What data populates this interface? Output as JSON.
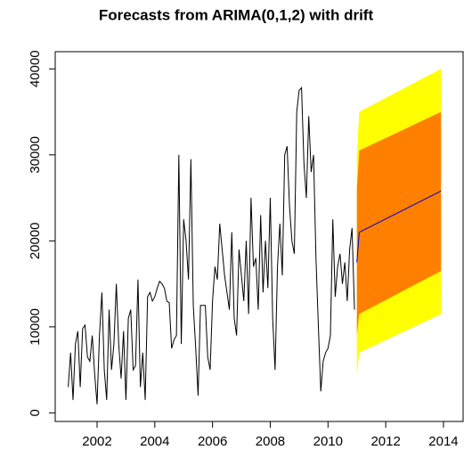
{
  "chart_data": {
    "type": "forecast",
    "title": "Forecasts from ARIMA(0,1,2) with drift",
    "xlim": [
      2000.55,
      2014.68
    ],
    "ylim": [
      -1000,
      42000
    ],
    "xticks": [
      2002,
      2004,
      2006,
      2008,
      2010,
      2012,
      2014
    ],
    "yticks": [
      0,
      10000,
      20000,
      30000,
      40000
    ],
    "series": [
      {
        "color": "#000000",
        "x": [
          2001,
          2001.083,
          2001.167,
          2001.25,
          2001.333,
          2001.417,
          2001.5,
          2001.583,
          2001.667,
          2001.75,
          2001.833,
          2001.917,
          2002,
          2002.083,
          2002.167,
          2002.25,
          2002.333,
          2002.417,
          2002.5,
          2002.583,
          2002.667,
          2002.75,
          2002.833,
          2002.917,
          2003,
          2003.083,
          2003.167,
          2003.25,
          2003.333,
          2003.417,
          2003.5,
          2003.583,
          2003.667,
          2003.75,
          2003.833,
          2003.917,
          2004,
          2004.083,
          2004.167,
          2004.25,
          2004.333,
          2004.417,
          2004.5,
          2004.583,
          2004.667,
          2004.75,
          2004.833,
          2004.917,
          2005,
          2005.083,
          2005.167,
          2005.25,
          2005.333,
          2005.417,
          2005.5,
          2005.583,
          2005.667,
          2005.75,
          2005.833,
          2005.917,
          2006,
          2006.083,
          2006.167,
          2006.25,
          2006.333,
          2006.417,
          2006.5,
          2006.583,
          2006.667,
          2006.75,
          2006.833,
          2006.917,
          2007,
          2007.083,
          2007.167,
          2007.25,
          2007.333,
          2007.417,
          2007.5,
          2007.583,
          2007.667,
          2007.75,
          2007.833,
          2007.917,
          2008,
          2008.083,
          2008.167,
          2008.25,
          2008.333,
          2008.417,
          2008.5,
          2008.583,
          2008.667,
          2008.75,
          2008.833,
          2008.917,
          2009,
          2009.083,
          2009.167,
          2009.25,
          2009.333,
          2009.417,
          2009.5,
          2009.583,
          2009.667,
          2009.75,
          2009.833,
          2009.917,
          2010,
          2010.083,
          2010.167,
          2010.25,
          2010.333,
          2010.417,
          2010.5,
          2010.583,
          2010.667,
          2010.75,
          2010.833,
          2010.917
        ],
        "values": [
          3000,
          7000,
          1500,
          8000,
          9500,
          3000,
          9800,
          10200,
          6500,
          6000,
          9000,
          4500,
          1000,
          9000,
          14000,
          5000,
          1500,
          12000,
          5000,
          8000,
          15000,
          8000,
          4000,
          9500,
          1500,
          11000,
          12000,
          5000,
          5500,
          15500,
          3000,
          7000,
          1500,
          13500,
          14000,
          13000,
          13500,
          14500,
          15300,
          15000,
          14500,
          13000,
          12800,
          7500,
          8500,
          9000,
          30000,
          8000,
          22500,
          20000,
          15500,
          29500,
          12500,
          7500,
          2000,
          12500,
          12500,
          12500,
          6500,
          5000,
          13000,
          17000,
          15500,
          22000,
          19000,
          16000,
          14000,
          12000,
          21000,
          11000,
          9000,
          19000,
          16000,
          13000,
          20000,
          11500,
          25000,
          17000,
          18000,
          12000,
          23000,
          14000,
          20000,
          14500,
          25000,
          11000,
          5000,
          17000,
          22000,
          16000,
          30000,
          31000,
          24000,
          20000,
          18500,
          35000,
          37500,
          37800,
          29000,
          25000,
          34500,
          28000,
          30000,
          18000,
          10000,
          2500,
          6000,
          7000,
          7500,
          9000,
          22500,
          13500,
          17000,
          18500,
          15000,
          17500,
          13000,
          19000,
          21500,
          12000
        ]
      }
    ],
    "forecast": {
      "x": [
        2011,
        2011.083,
        2013.917
      ],
      "mean": [
        17500,
        21000,
        25800
      ],
      "mean_color": "#0000cc",
      "lo80": [
        9000,
        11500,
        16500
      ],
      "hi80": [
        26000,
        30500,
        35000
      ],
      "color80": "#ff8000",
      "lo95": [
        4500,
        7000,
        11500
      ],
      "hi95": [
        30000,
        35000,
        40000
      ],
      "color95": "#ffff00"
    }
  }
}
